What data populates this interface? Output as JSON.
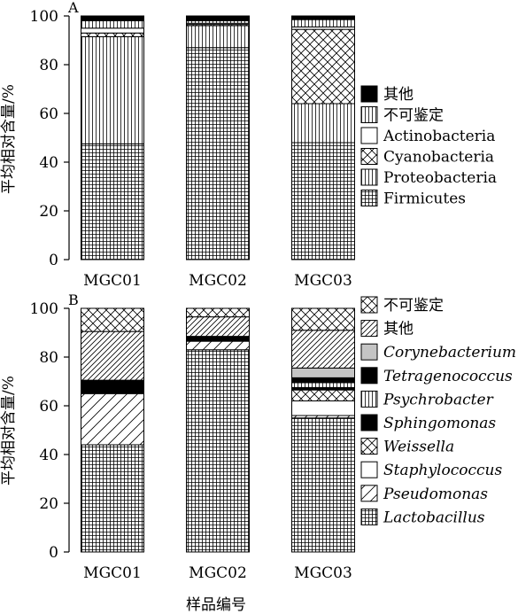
{
  "chart_data": [
    {
      "panel_label": "A",
      "type": "bar",
      "stacked": true,
      "ylabel": "平均相对含量/%",
      "ylim": [
        0,
        100
      ],
      "yticks": [
        "0",
        "20",
        "40",
        "60",
        "80",
        "100"
      ],
      "categories": [
        "MGC01",
        "MGC02",
        "MGC03"
      ],
      "legend_position": "right",
      "series": [
        {
          "name": "Firmicutes",
          "pattern": "grid",
          "values": [
            47.5,
            87,
            48
          ]
        },
        {
          "name": "Proteobacteria",
          "pattern": "vlines",
          "values": [
            44,
            9,
            16
          ]
        },
        {
          "name": "Cyanobacteria",
          "pattern": "cross",
          "values": [
            1.5,
            0.5,
            30.5
          ]
        },
        {
          "name": "Actinobacteria",
          "pattern": "blank",
          "values": [
            2,
            0.5,
            1
          ]
        },
        {
          "name": "不可鉴定",
          "pattern": "vlines",
          "values": [
            3,
            1,
            3
          ]
        },
        {
          "name": "其他",
          "pattern": "solid",
          "values": [
            2,
            2,
            1.5
          ]
        }
      ]
    },
    {
      "panel_label": "B",
      "type": "bar",
      "stacked": true,
      "ylabel": "平均相对含量/%",
      "xlabel": "样品编号",
      "ylim": [
        0,
        100
      ],
      "yticks": [
        "0",
        "20",
        "40",
        "60",
        "80",
        "100"
      ],
      "categories": [
        "MGC01",
        "MGC02",
        "MGC03"
      ],
      "legend_position": "right",
      "series": [
        {
          "name": "Lactobacillus",
          "italic": true,
          "pattern": "grid",
          "values": [
            44,
            83,
            55
          ]
        },
        {
          "name": "Pseudomonas",
          "italic": true,
          "pattern": "diag-wide",
          "values": [
            21,
            3.5,
            1
          ]
        },
        {
          "name": "Staphylococcus",
          "italic": true,
          "pattern": "blank",
          "values": [
            0,
            0,
            6
          ]
        },
        {
          "name": "Weissella",
          "italic": true,
          "pattern": "cross",
          "values": [
            0,
            0,
            4.5
          ]
        },
        {
          "name": "Sphingomonas",
          "italic": true,
          "pattern": "solid",
          "values": [
            0,
            0,
            1
          ]
        },
        {
          "name": "Psychrobacter",
          "italic": true,
          "pattern": "vlines",
          "values": [
            0,
            0,
            2
          ]
        },
        {
          "name": "Tetragenococcus",
          "italic": true,
          "pattern": "solid",
          "values": [
            5.5,
            2,
            2
          ]
        },
        {
          "name": "Corynebacterium",
          "italic": true,
          "pattern": "gray",
          "values": [
            0,
            0,
            4
          ]
        },
        {
          "name": "其他",
          "italic": false,
          "pattern": "diag",
          "values": [
            20,
            8,
            15.5
          ]
        },
        {
          "name": "不可鉴定",
          "italic": false,
          "pattern": "cross",
          "values": [
            9.5,
            3.5,
            9
          ]
        }
      ]
    }
  ]
}
